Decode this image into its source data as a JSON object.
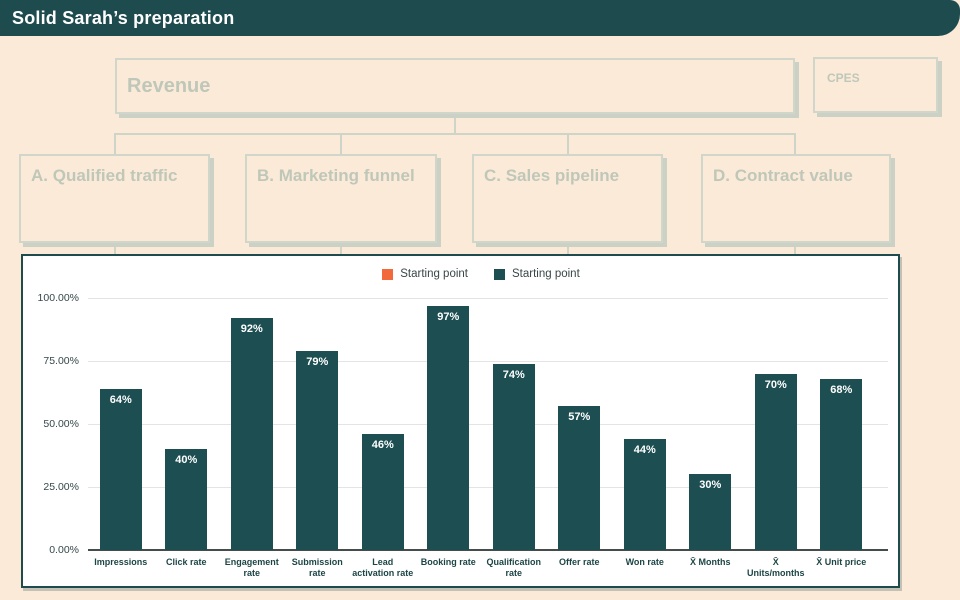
{
  "header": {
    "title": "Solid Sarah’s preparation"
  },
  "flowchart": {
    "revenue_label": "Revenue",
    "cpes_label": "CPES",
    "children": [
      {
        "label": "A. Qualified traffic"
      },
      {
        "label": "B. Marketing funnel"
      },
      {
        "label": "C. Sales pipeline"
      },
      {
        "label": "D. Contract value"
      }
    ]
  },
  "chart_data": {
    "type": "bar",
    "title": "",
    "categories": [
      "Impressions",
      "Click rate",
      "Engagement rate",
      "Submission rate",
      "Lead activation rate",
      "Booking rate",
      "Qualification rate",
      "Offer rate",
      "Won rate",
      "X̄ Months",
      "X̄ Units/months",
      "X̄ Unit price"
    ],
    "values": [
      64,
      40,
      92,
      79,
      46,
      97,
      74,
      57,
      44,
      30,
      70,
      68
    ],
    "value_labels": [
      "64%",
      "40%",
      "92%",
      "79%",
      "46%",
      "97%",
      "74%",
      "57%",
      "44%",
      "30%",
      "70%",
      "68%"
    ],
    "y_ticks": [
      {
        "label": "0.00%",
        "value": 0
      },
      {
        "label": "25.00%",
        "value": 25
      },
      {
        "label": "50.00%",
        "value": 50
      },
      {
        "label": "75.00%",
        "value": 75
      },
      {
        "label": "100.00%",
        "value": 100
      }
    ],
    "ylim": [
      0,
      100
    ],
    "grid": true,
    "legend_position": "top",
    "legend": [
      {
        "label": "Starting point",
        "color": "#f2693b"
      },
      {
        "label": "Starting point",
        "color": "#1d4e51"
      }
    ],
    "bar_color": "#1d4e51"
  },
  "colors": {
    "header_teal": "#1d4b4e",
    "bar_teal": "#1d4e51",
    "legend_orange": "#f2693b",
    "background_peach": "#fcead9",
    "box_border": "#d1d6ca",
    "box_text": "#bfc7b9"
  }
}
